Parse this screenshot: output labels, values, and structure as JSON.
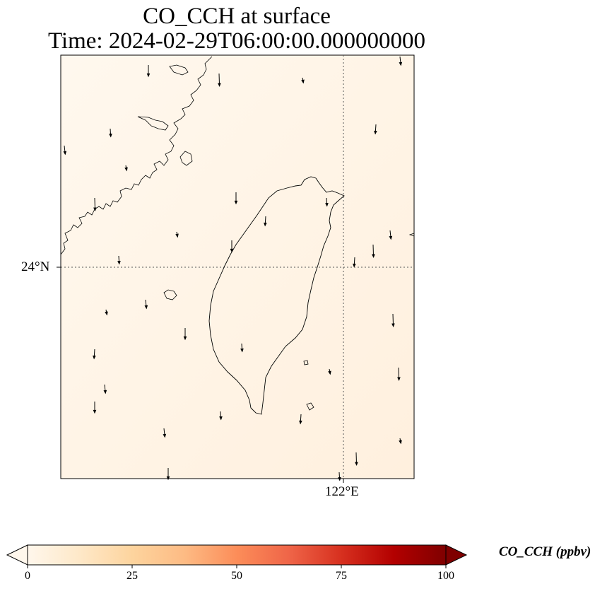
{
  "title": {
    "line1": "CO_CCH at surface",
    "line2": "Time: 2024-02-29T06:00:00.000000000"
  },
  "map": {
    "lat_label": "24°N",
    "lon_label": "122°E",
    "field_colors": [
      "#fff7ec",
      "#fff0df"
    ],
    "coast_color": "#000000"
  },
  "colorbar": {
    "label": "CO_CCH (ppbv)",
    "ticks": [
      "0",
      "25",
      "50",
      "75",
      "100"
    ],
    "colormap": [
      "#fff7ec",
      "#fee8c8",
      "#fdd49e",
      "#fdbb84",
      "#fc8d59",
      "#ef6548",
      "#d7301f",
      "#b30000",
      "#7f0000"
    ],
    "extend": "both"
  },
  "wind_vectors": [
    {
      "dir": 150,
      "len": 14
    },
    {
      "dir": 135,
      "len": 10
    },
    {
      "dir": 170,
      "len": 18
    },
    {
      "dir": 180,
      "len": 16
    },
    {
      "dir": 160,
      "len": 12
    },
    {
      "dir": 200,
      "len": 14
    }
  ]
}
